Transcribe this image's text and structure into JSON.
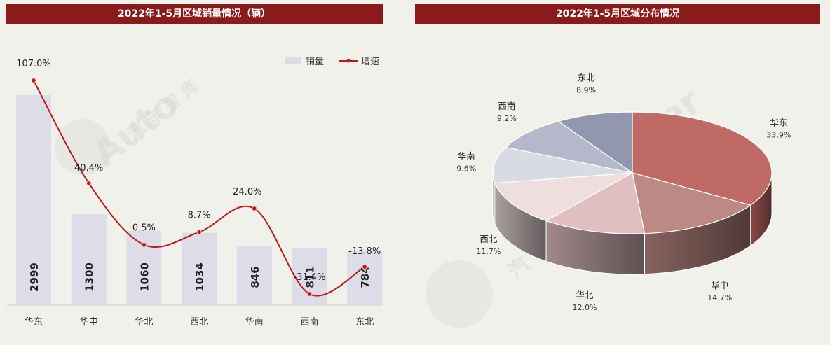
{
  "left_chart": {
    "title": "2022年1-5月区域销量情况（辆）"
  },
  "right_chart": {
    "title": "2022年1-5月区域分布情况"
  },
  "colors": {
    "title_bg": "#8b1a1a",
    "bar": "#dcdde8",
    "line": "#c01818",
    "pie": [
      "#bf6a64",
      "#bc8984",
      "#dfbfc0",
      "#eedede",
      "#d9dbe4",
      "#b5b7cb",
      "#9297b0"
    ]
  },
  "chart_data": [
    {
      "type": "bar",
      "title": "2022年1-5月区域销量情况（辆）",
      "categories": [
        "华东",
        "华中",
        "华北",
        "西北",
        "华南",
        "西南",
        "东北"
      ],
      "series": [
        {
          "name": "销量",
          "type": "bar",
          "values": [
            2999,
            1300,
            1060,
            1034,
            846,
            811,
            784
          ]
        },
        {
          "name": "增速",
          "type": "line",
          "values": [
            107.0,
            40.4,
            0.5,
            8.7,
            24.0,
            -31.4,
            -13.8
          ],
          "labels": [
            "107.0%",
            "40.4%",
            "0.5%",
            "8.7%",
            "24.0%",
            "-31.4%",
            "-13.8%"
          ]
        }
      ],
      "legend_position": "top-right",
      "grid": false
    },
    {
      "type": "pie",
      "title": "2022年1-5月区域分布情况",
      "categories": [
        "华东",
        "华中",
        "华北",
        "西北",
        "华南",
        "西南",
        "东北"
      ],
      "values": [
        33.9,
        14.7,
        12.0,
        11.7,
        9.6,
        9.2,
        8.9
      ],
      "labels": [
        "33.9%",
        "14.7%",
        "12.0%",
        "11.7%",
        "9.6%",
        "9.2%",
        "8.9%"
      ]
    }
  ]
}
